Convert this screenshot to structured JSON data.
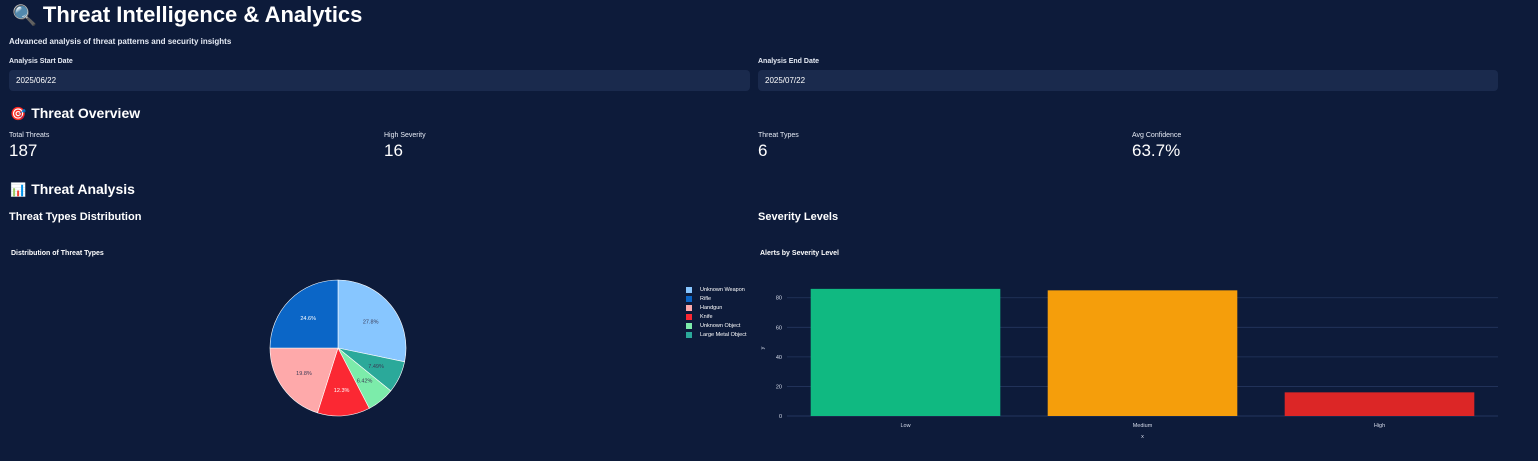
{
  "header": {
    "icon": "magnifier-icon",
    "title": "Threat Intelligence & Analytics",
    "subtitle": "Advanced analysis of threat patterns and security insights"
  },
  "filters": {
    "start_label": "Analysis Start Date",
    "start_value": "2025/06/22",
    "end_label": "Analysis End Date",
    "end_value": "2025/07/22"
  },
  "overview": {
    "icon": "target-icon",
    "heading": "Threat Overview",
    "metrics": [
      {
        "label": "Total Threats",
        "value": "187"
      },
      {
        "label": "High Severity",
        "value": "16"
      },
      {
        "label": "Threat Types",
        "value": "6"
      },
      {
        "label": "Avg Confidence",
        "value": "63.7%"
      }
    ]
  },
  "analysis": {
    "icon": "bar-chart-icon",
    "heading": "Threat Analysis",
    "left_heading": "Threat Types Distribution",
    "right_heading": "Severity Levels"
  },
  "chart_data": [
    {
      "type": "pie",
      "title": "Distribution of Threat Types",
      "labels": [
        "Unknown Weapon",
        "Large Metal Object",
        "Unknown Object",
        "Knife",
        "Handgun",
        "Rifle"
      ],
      "percent_labels": [
        "27.8%",
        "7.49%",
        "6.42%",
        "12.3%",
        "19.8%",
        "24.6%"
      ],
      "values": [
        27.8,
        7.49,
        6.42,
        12.3,
        19.8,
        24.6
      ],
      "legend_order": [
        "Unknown Weapon",
        "Rifle",
        "Handgun",
        "Knife",
        "Unknown Object",
        "Large Metal Object"
      ],
      "colors": {
        "Unknown Weapon": "#87c6ff",
        "Rifle": "#0b66c7",
        "Handgun": "#fea9aa",
        "Knife": "#fb2833",
        "Unknown Object": "#7cecaa",
        "Large Metal Object": "#2ba99a"
      },
      "legend": "right"
    },
    {
      "type": "bar",
      "title": "Alerts by Severity Level",
      "categories": [
        "Low",
        "Medium",
        "High"
      ],
      "values": [
        86,
        85,
        16
      ],
      "colors": [
        "#10b981",
        "#f59e0b",
        "#dc2626"
      ],
      "xlabel": "x",
      "ylabel": "y",
      "ylim": [
        0,
        92
      ],
      "yticks": [
        0,
        20,
        40,
        60,
        80
      ],
      "grid": true
    }
  ]
}
